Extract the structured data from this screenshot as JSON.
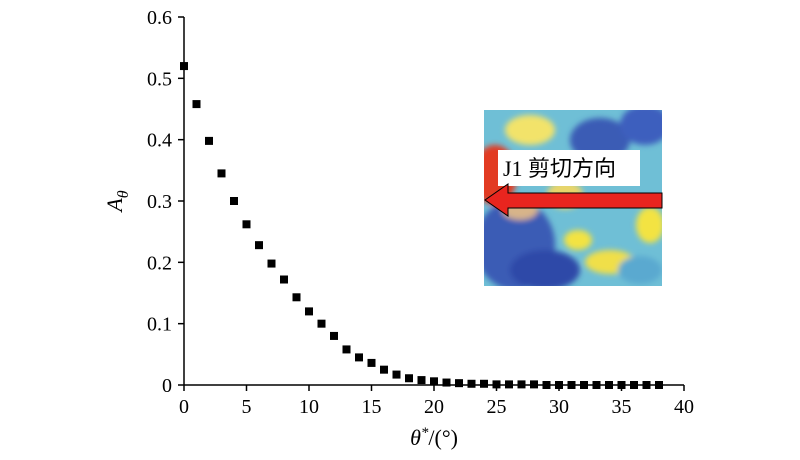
{
  "chart_data": {
    "type": "scatter",
    "title": "",
    "xlabel": "θ*/(°)",
    "ylabel": "Aθ",
    "xlim": [
      0,
      40
    ],
    "ylim": [
      0,
      0.6
    ],
    "xticks": [
      0,
      5,
      10,
      15,
      20,
      25,
      30,
      35,
      40
    ],
    "yticks": [
      0,
      0.1,
      0.2,
      0.3,
      0.4,
      0.5,
      0.6
    ],
    "ytick_labels": [
      "0",
      "0.1",
      "0.2",
      "0.3",
      "0.4",
      "0.5",
      "0.6"
    ],
    "grid": false,
    "marker": "square",
    "marker_color": "#000000",
    "x": [
      0,
      1,
      2,
      3,
      4,
      5,
      6,
      7,
      8,
      9,
      10,
      11,
      12,
      13,
      14,
      15,
      16,
      17,
      18,
      19,
      20,
      21,
      22,
      23,
      24,
      25,
      26,
      27,
      28,
      29,
      30,
      31,
      32,
      33,
      34,
      35,
      36,
      37,
      38
    ],
    "y": [
      0.52,
      0.458,
      0.398,
      0.345,
      0.3,
      0.262,
      0.228,
      0.198,
      0.172,
      0.143,
      0.12,
      0.1,
      0.08,
      0.058,
      0.045,
      0.036,
      0.025,
      0.017,
      0.011,
      0.008,
      0.006,
      0.004,
      0.003,
      0.002,
      0.002,
      0.001,
      0.001,
      0.001,
      0.001,
      0.0,
      0.0,
      0.0,
      0.0,
      0.0,
      0.0,
      0.0,
      0.0,
      0.0,
      0.0
    ]
  },
  "inset": {
    "label": "J1 剪切方向",
    "arrow_color": "#e8251f"
  }
}
